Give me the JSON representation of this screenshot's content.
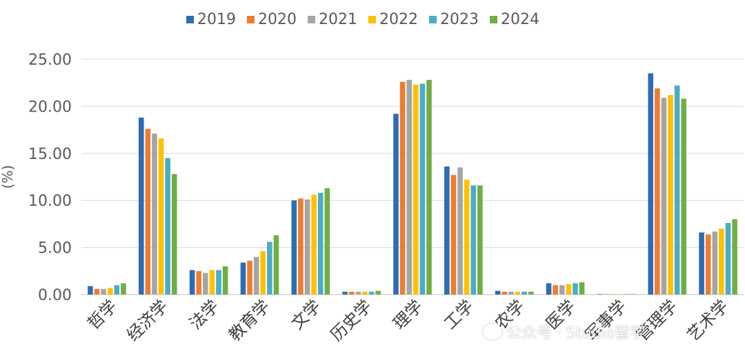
{
  "chart_data": {
    "type": "bar",
    "title": "",
    "xlabel": "",
    "ylabel": "(%)",
    "ylim": [
      0,
      25
    ],
    "yticks": [
      "0.00",
      "5.00",
      "10.00",
      "15.00",
      "20.00",
      "25.00"
    ],
    "grid": true,
    "legend_position": "top",
    "categories": [
      "哲学",
      "经济学",
      "法学",
      "教育学",
      "文学",
      "历史学",
      "理学",
      "工学",
      "农学",
      "医学",
      "军事学",
      "管理学",
      "艺术学"
    ],
    "series": [
      {
        "name": "2019",
        "color": "#2E6DB4",
        "values": [
          0.9,
          18.8,
          2.6,
          3.4,
          10.0,
          0.3,
          19.2,
          13.6,
          0.4,
          1.2,
          0.05,
          23.5,
          6.6
        ]
      },
      {
        "name": "2020",
        "color": "#ED7D31",
        "values": [
          0.6,
          17.6,
          2.5,
          3.6,
          10.2,
          0.3,
          22.6,
          12.7,
          0.3,
          1.0,
          0.05,
          21.9,
          6.4
        ]
      },
      {
        "name": "2021",
        "color": "#A5A5A5",
        "values": [
          0.6,
          17.1,
          2.3,
          4.0,
          10.1,
          0.3,
          22.8,
          13.5,
          0.3,
          1.0,
          0.05,
          20.9,
          6.7
        ]
      },
      {
        "name": "2022",
        "color": "#FFC000",
        "values": [
          0.7,
          16.6,
          2.6,
          4.6,
          10.6,
          0.3,
          22.3,
          12.2,
          0.3,
          1.1,
          0.05,
          21.2,
          7.0
        ]
      },
      {
        "name": "2023",
        "color": "#4BACC6",
        "values": [
          1.0,
          14.5,
          2.6,
          5.6,
          10.8,
          0.3,
          22.4,
          11.6,
          0.3,
          1.2,
          0.05,
          22.2,
          7.6
        ]
      },
      {
        "name": "2024",
        "color": "#70AD47",
        "values": [
          1.2,
          12.8,
          3.0,
          6.3,
          11.3,
          0.4,
          22.8,
          11.6,
          0.3,
          1.3,
          0.05,
          20.8,
          8.0
        ]
      }
    ]
  },
  "watermark": {
    "text": "公众号 · Studio留学"
  }
}
